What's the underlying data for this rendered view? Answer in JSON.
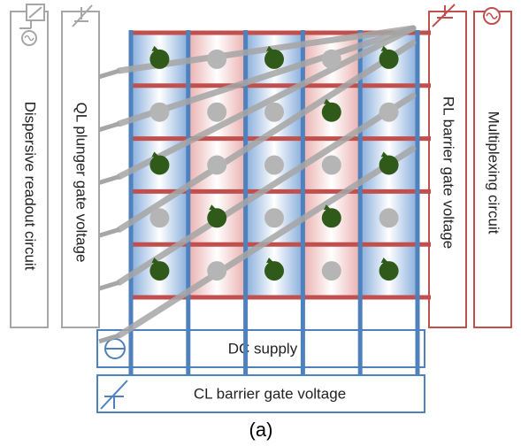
{
  "labels": {
    "dispersive_readout": "Dispersive readout circuit",
    "ql_plunger": "QL plunger gate voltage",
    "rl_barrier": "RL barrier gate voltage",
    "multiplexing": "Multiplexing circuit",
    "dc_supply": "DC supply",
    "cl_barrier": "CL barrier gate voltage",
    "caption": "(a)"
  },
  "grid": {
    "rows": 5,
    "cols": 5,
    "cell_shading": [
      [
        "blue",
        "red",
        "blue",
        "red",
        "blue"
      ],
      [
        "blue",
        "red",
        "blue",
        "red",
        "blue"
      ],
      [
        "blue",
        "red",
        "blue",
        "red",
        "blue"
      ],
      [
        "blue",
        "red",
        "blue",
        "red",
        "blue"
      ],
      [
        "blue",
        "red",
        "blue",
        "red",
        "blue"
      ]
    ],
    "dots": [
      [
        "spin-up",
        "empty",
        "spin-up",
        "empty",
        "spin-up"
      ],
      [
        "empty",
        "empty",
        "empty",
        "spin-up",
        "empty"
      ],
      [
        "spin-up",
        "empty",
        "empty",
        "empty",
        "spin-up"
      ],
      [
        "empty",
        "spin-up",
        "empty",
        "spin-up",
        "empty"
      ],
      [
        "spin-up",
        "empty",
        "spin-up",
        "empty",
        "spin-up"
      ]
    ]
  },
  "colors": {
    "gray": "#a6a6a6",
    "red": "#c0504d",
    "blue": "#4f81bd",
    "spin": "#2f5a1a",
    "dot_empty": "#b5b5b5"
  }
}
